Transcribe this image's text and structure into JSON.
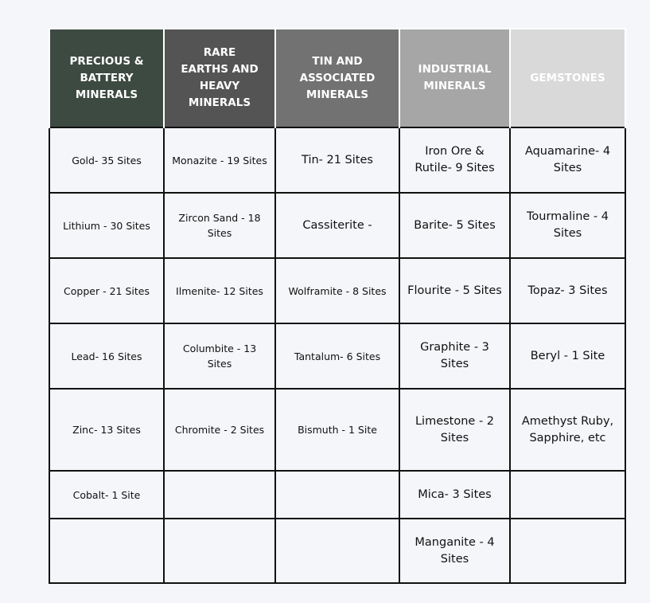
{
  "columns": [
    {
      "label": "PRECIOUS & BATTERY MINERALS",
      "color": "#3d4a42"
    },
    {
      "label": "RARE EARTHS AND HEAVY MINERALS",
      "color": "#545454"
    },
    {
      "label": "TIN AND ASSOCIATED MINERALS",
      "color": "#727272"
    },
    {
      "label": "INDUSTRIAL MINERALS",
      "color": "#a6a6a6"
    },
    {
      "label": "GEMSTONES",
      "color": "#d9d9d9"
    }
  ],
  "rows": [
    [
      "Gold- 35 Sites",
      "Monazite - 19 Sites",
      "Tin- 21 Sites",
      "Iron Ore & Rutile- 9 Sites",
      "Aquamarine- 4 Sites"
    ],
    [
      "Lithium - 30 Sites",
      "Zircon Sand - 18 Sites",
      "Cassiterite -",
      "Barite- 5 Sites",
      "Tourmaline - 4 Sites"
    ],
    [
      "Copper - 21 Sites",
      "Ilmenite- 12 Sites",
      "Wolframite - 8 Sites",
      "Flourite - 5 Sites",
      "Topaz- 3 Sites"
    ],
    [
      "Lead- 16 Sites",
      "Columbite - 13 Sites",
      "Tantalum- 6 Sites",
      "Graphite - 3 Sites",
      "Beryl - 1 Site"
    ],
    [
      "Zinc- 13 Sites",
      "Chromite - 2 Sites",
      "Bismuth - 1 Site",
      "Limestone - 2 Sites",
      "Amethyst Ruby, Sapphire, etc"
    ],
    [
      "Cobalt- 1 Site",
      "",
      "",
      "Mica- 3 Sites",
      ""
    ],
    [
      "",
      "",
      "",
      "Manganite - 4 Sites",
      ""
    ]
  ]
}
